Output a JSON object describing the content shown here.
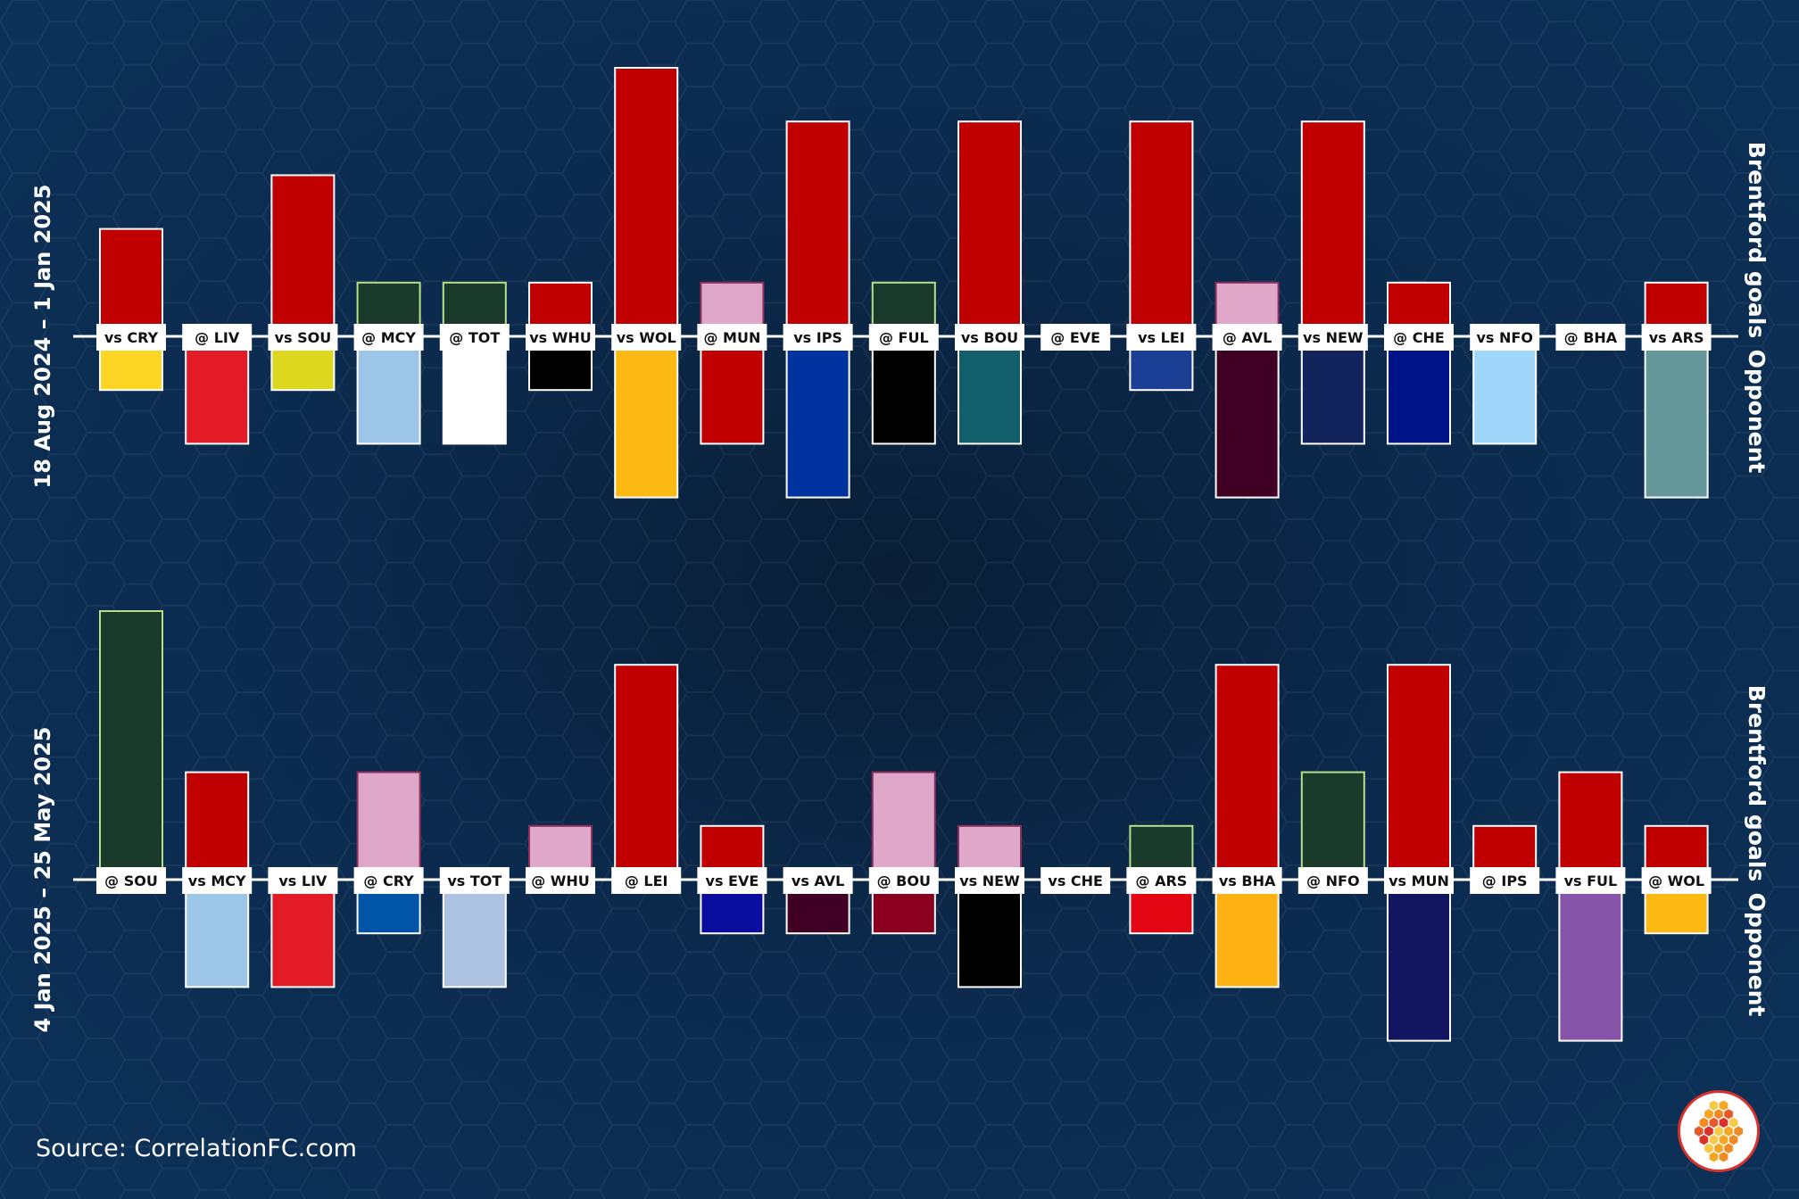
{
  "source": "Source: CorrelationFC.com",
  "logo": {
    "icon": "honeycomb-logo-icon"
  },
  "chart_data": [
    {
      "type": "bar",
      "period_label": "18 Aug 2024 – 1 Jan 2025",
      "upper_label": "Brentford goals",
      "lower_label": "Opponent",
      "brentford_color": "#c00000",
      "ylim": [
        -4,
        5
      ],
      "matches": [
        {
          "label": "vs CRY",
          "brentford": 2,
          "opponent": 1,
          "bar_color": "#c00000",
          "opp_color": "#fdd525"
        },
        {
          "label": "@ LIV",
          "brentford": 0,
          "opponent": 2,
          "bar_color": "#c00000",
          "opp_color": "#e21b26"
        },
        {
          "label": "vs SOU",
          "brentford": 3,
          "opponent": 1,
          "bar_color": "#c00000",
          "opp_color": "#dcd71f"
        },
        {
          "label": "@ MCY",
          "brentford": 1,
          "opponent": 2,
          "bar_color": "#1a3a2c",
          "opp_color": "#9dc5e8"
        },
        {
          "label": "@ TOT",
          "brentford": 1,
          "opponent": 2,
          "bar_color": "#1a3a2c",
          "opp_color": "#ffffff"
        },
        {
          "label": "vs WHU",
          "brentford": 1,
          "opponent": 1,
          "bar_color": "#c00000",
          "opp_color": "#000000"
        },
        {
          "label": "vs WOL",
          "brentford": 5,
          "opponent": 3,
          "bar_color": "#c00000",
          "opp_color": "#fcb913"
        },
        {
          "label": "@ MUN",
          "brentford": 1,
          "opponent": 2,
          "bar_color": "#e0a8c8",
          "opp_color": "#c00000"
        },
        {
          "label": "vs IPS",
          "brentford": 4,
          "opponent": 3,
          "bar_color": "#c00000",
          "opp_color": "#0033a0"
        },
        {
          "label": "@ FUL",
          "brentford": 1,
          "opponent": 2,
          "bar_color": "#1a3a2c",
          "opp_color": "#000000"
        },
        {
          "label": "vs BOU",
          "brentford": 4,
          "opponent": 2,
          "bar_color": "#c00000",
          "opp_color": "#125e6b"
        },
        {
          "label": "@ EVE",
          "brentford": 0,
          "opponent": 0,
          "bar_color": "#c00000",
          "opp_color": "#274488"
        },
        {
          "label": "vs LEI",
          "brentford": 4,
          "opponent": 1,
          "bar_color": "#c00000",
          "opp_color": "#1a3f94"
        },
        {
          "label": "@ AVL",
          "brentford": 1,
          "opponent": 3,
          "bar_color": "#e0a8c8",
          "opp_color": "#3f0024"
        },
        {
          "label": "vs NEW",
          "brentford": 4,
          "opponent": 2,
          "bar_color": "#c00000",
          "opp_color": "#13245c"
        },
        {
          "label": "@ CHE",
          "brentford": 1,
          "opponent": 2,
          "bar_color": "#c00000",
          "opp_color": "#001489"
        },
        {
          "label": "vs NFO",
          "brentford": 0,
          "opponent": 2,
          "bar_color": "#c00000",
          "opp_color": "#9fd6f9"
        },
        {
          "label": "@ BHA",
          "brentford": 0,
          "opponent": 0,
          "bar_color": "#c00000",
          "opp_color": "#0057b8"
        },
        {
          "label": "vs ARS",
          "brentford": 1,
          "opponent": 3,
          "bar_color": "#c00000",
          "opp_color": "#63979a"
        }
      ]
    },
    {
      "type": "bar",
      "period_label": "4 Jan 2025 – 25 May 2025",
      "upper_label": "Brentford goals",
      "lower_label": "Opponent",
      "brentford_color": "#c00000",
      "ylim": [
        -4,
        5
      ],
      "matches": [
        {
          "label": "@ SOU",
          "brentford": 5,
          "opponent": 0,
          "bar_color": "#1a3a2c",
          "opp_color": "#dcd71f"
        },
        {
          "label": "vs MCY",
          "brentford": 2,
          "opponent": 2,
          "bar_color": "#c00000",
          "opp_color": "#9dc5e8"
        },
        {
          "label": "vs LIV",
          "brentford": 0,
          "opponent": 2,
          "bar_color": "#c00000",
          "opp_color": "#e21b26"
        },
        {
          "label": "@ CRY",
          "brentford": 2,
          "opponent": 1,
          "bar_color": "#e0a8c8",
          "opp_color": "#0055a8"
        },
        {
          "label": "vs TOT",
          "brentford": 0,
          "opponent": 2,
          "bar_color": "#c00000",
          "opp_color": "#adc2e0"
        },
        {
          "label": "@ WHU",
          "brentford": 1,
          "opponent": 0,
          "bar_color": "#e0a8c8",
          "opp_color": "#7a263a"
        },
        {
          "label": "@ LEI",
          "brentford": 4,
          "opponent": 0,
          "bar_color": "#c00000",
          "opp_color": "#1a3f94"
        },
        {
          "label": "vs EVE",
          "brentford": 1,
          "opponent": 1,
          "bar_color": "#c00000",
          "opp_color": "#0b0d9e"
        },
        {
          "label": "vs AVL",
          "brentford": 0,
          "opponent": 1,
          "bar_color": "#c00000",
          "opp_color": "#3f0024"
        },
        {
          "label": "@ BOU",
          "brentford": 2,
          "opponent": 1,
          "bar_color": "#e0a8c8",
          "opp_color": "#8b0020"
        },
        {
          "label": "vs NEW",
          "brentford": 1,
          "opponent": 2,
          "bar_color": "#e0a8c8",
          "opp_color": "#000000"
        },
        {
          "label": "vs CHE",
          "brentford": 0,
          "opponent": 0,
          "bar_color": "#c00000",
          "opp_color": "#001489"
        },
        {
          "label": "@ ARS",
          "brentford": 1,
          "opponent": 1,
          "bar_color": "#1a3a2c",
          "opp_color": "#e30613"
        },
        {
          "label": "vs BHA",
          "brentford": 4,
          "opponent": 2,
          "bar_color": "#c00000",
          "opp_color": "#fdb112"
        },
        {
          "label": "@ NFO",
          "brentford": 2,
          "opponent": 0,
          "bar_color": "#1a3a2c",
          "opp_color": "#c00000"
        },
        {
          "label": "vs MUN",
          "brentford": 4,
          "opponent": 3,
          "bar_color": "#c00000",
          "opp_color": "#121560"
        },
        {
          "label": "@ IPS",
          "brentford": 1,
          "opponent": 0,
          "bar_color": "#c00000",
          "opp_color": "#0033a0"
        },
        {
          "label": "vs FUL",
          "brentford": 2,
          "opponent": 3,
          "bar_color": "#c00000",
          "opp_color": "#8654a9"
        },
        {
          "label": "@ WOL",
          "brentford": 1,
          "opponent": 1,
          "bar_color": "#c00000",
          "opp_color": "#fcb913"
        }
      ]
    }
  ]
}
